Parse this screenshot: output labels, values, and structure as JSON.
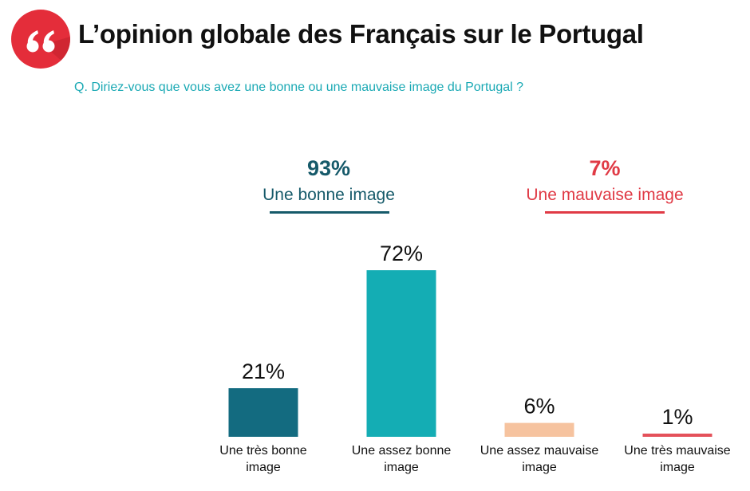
{
  "header": {
    "title": "L’opinion globale des Français sur le Portugal",
    "question": "Q. Diriez-vous que vous avez une bonne ou une mauvaise image du Portugal ?"
  },
  "summary": {
    "good": {
      "pct": "93%",
      "label": "Une bonne image",
      "color": "#165a6a"
    },
    "bad": {
      "pct": "7%",
      "label": "Une mauvaise image",
      "color": "#e03a45"
    }
  },
  "chart_data": {
    "type": "bar",
    "categories": [
      [
        "Une très bonne",
        "image"
      ],
      [
        "Une assez bonne",
        "image"
      ],
      [
        "Une assez mauvaise",
        "image"
      ],
      [
        "Une très mauvaise",
        "image"
      ]
    ],
    "values": [
      21,
      72,
      6,
      1
    ],
    "value_labels": [
      "21%",
      "72%",
      "6%",
      "1%"
    ],
    "colors": [
      "#136b80",
      "#14adb4",
      "#f6c39f",
      "#e4515a"
    ],
    "ylim": [
      0,
      72
    ],
    "grid": false,
    "legend": "none"
  }
}
